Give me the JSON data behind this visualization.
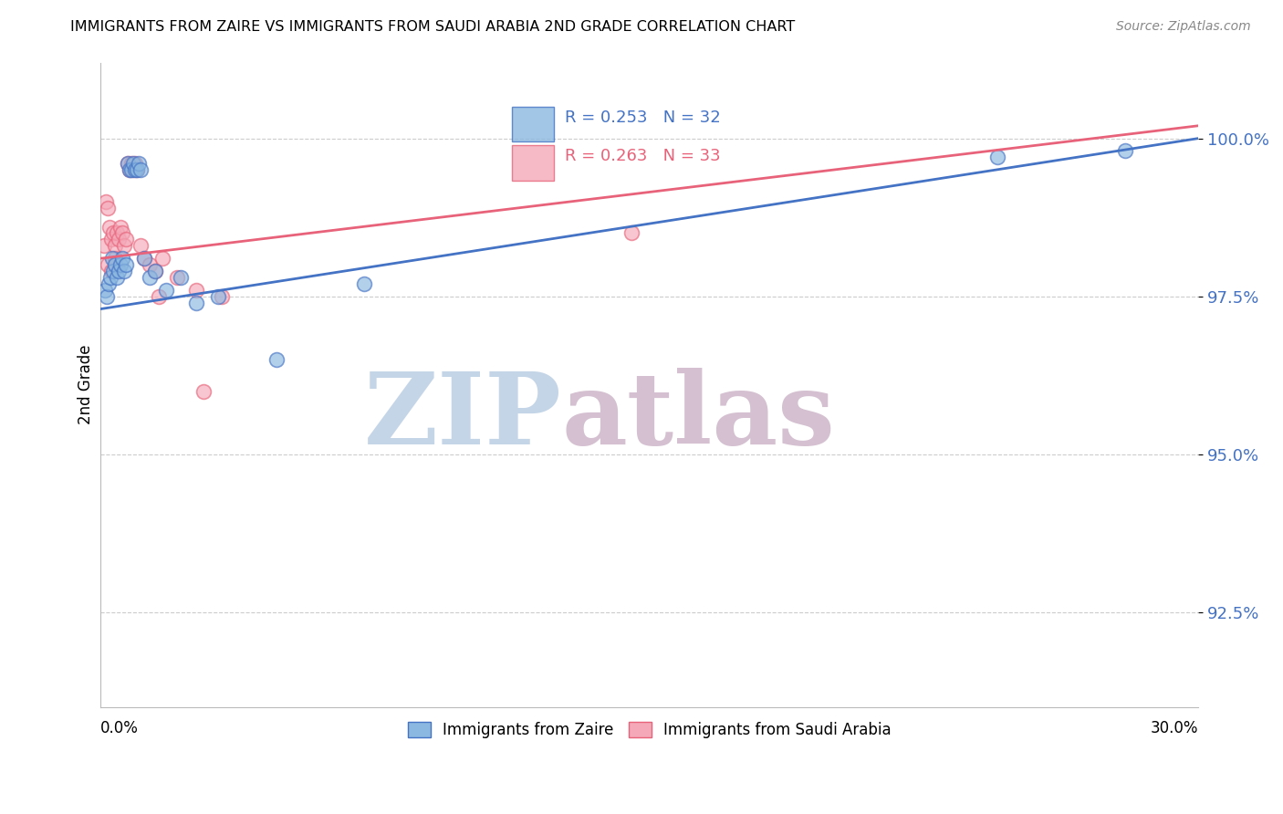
{
  "title": "IMMIGRANTS FROM ZAIRE VS IMMIGRANTS FROM SAUDI ARABIA 2ND GRADE CORRELATION CHART",
  "source": "Source: ZipAtlas.com",
  "ylabel": "2nd Grade",
  "xmin": 0.0,
  "xmax": 30.0,
  "ymin": 91.0,
  "ymax": 101.2,
  "yticks": [
    92.5,
    95.0,
    97.5,
    100.0
  ],
  "ytick_labels": [
    "92.5%",
    "95.0%",
    "97.5%",
    "100.0%"
  ],
  "legend_blue_r": "R = 0.253",
  "legend_blue_n": "N = 32",
  "legend_pink_r": "R = 0.263",
  "legend_pink_n": "N = 33",
  "blue_color": "#8BB8E0",
  "pink_color": "#F4A8B8",
  "blue_line_color": "#4472C4",
  "pink_line_color": "#E8637A",
  "watermark_zip": "ZIP",
  "watermark_atlas": "atlas",
  "watermark_color_zip": "#C5D5E8",
  "watermark_color_atlas": "#D4C0D0",
  "blue_x": [
    0.13,
    0.18,
    0.22,
    0.27,
    0.31,
    0.35,
    0.4,
    0.45,
    0.5,
    0.55,
    0.6,
    0.65,
    0.7,
    0.75,
    0.8,
    0.85,
    0.9,
    0.95,
    1.0,
    1.05,
    1.1,
    1.2,
    1.35,
    1.5,
    1.8,
    2.2,
    2.6,
    3.2,
    4.8,
    7.2,
    24.5,
    28.0
  ],
  "blue_y": [
    97.6,
    97.5,
    97.7,
    97.8,
    98.1,
    97.9,
    98.0,
    97.8,
    97.9,
    98.0,
    98.1,
    97.9,
    98.0,
    99.6,
    99.5,
    99.5,
    99.6,
    99.5,
    99.5,
    99.6,
    99.5,
    98.1,
    97.8,
    97.9,
    97.6,
    97.8,
    97.4,
    97.5,
    96.5,
    97.7,
    99.7,
    99.8
  ],
  "pink_x": [
    0.1,
    0.15,
    0.2,
    0.25,
    0.3,
    0.35,
    0.4,
    0.45,
    0.5,
    0.55,
    0.6,
    0.65,
    0.7,
    0.75,
    0.8,
    0.85,
    0.9,
    0.95,
    1.0,
    1.1,
    1.2,
    1.35,
    1.5,
    1.7,
    2.1,
    2.6,
    3.3,
    0.2,
    0.3,
    0.4,
    1.6,
    14.5,
    2.8
  ],
  "pink_y": [
    98.3,
    99.0,
    98.9,
    98.6,
    98.4,
    98.5,
    98.3,
    98.5,
    98.4,
    98.6,
    98.5,
    98.3,
    98.4,
    99.6,
    99.5,
    99.6,
    99.5,
    99.6,
    99.5,
    98.3,
    98.1,
    98.0,
    97.9,
    98.1,
    97.8,
    97.6,
    97.5,
    98.0,
    97.9,
    98.1,
    97.5,
    98.5,
    96.0
  ]
}
